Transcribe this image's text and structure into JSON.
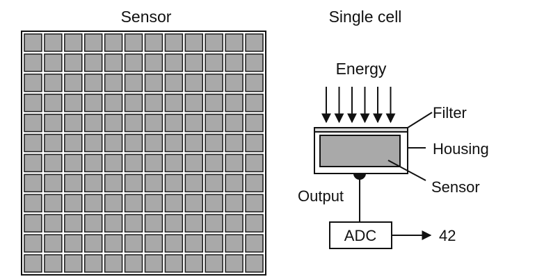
{
  "sensor_panel": {
    "title": "Sensor",
    "grid": {
      "rows": 12,
      "cols": 12
    }
  },
  "cell_panel": {
    "title": "Single cell",
    "energy_label": "Energy",
    "arrow_count": 6,
    "labels": {
      "filter": "Filter",
      "housing": "Housing",
      "sensor": "Sensor",
      "output": "Output",
      "adc": "ADC",
      "value": "42"
    }
  },
  "colors": {
    "cell_fill": "#a9a9a9",
    "cell_stroke": "#1a1a1a",
    "grid_background": "#ffffff",
    "line": "#111111"
  }
}
